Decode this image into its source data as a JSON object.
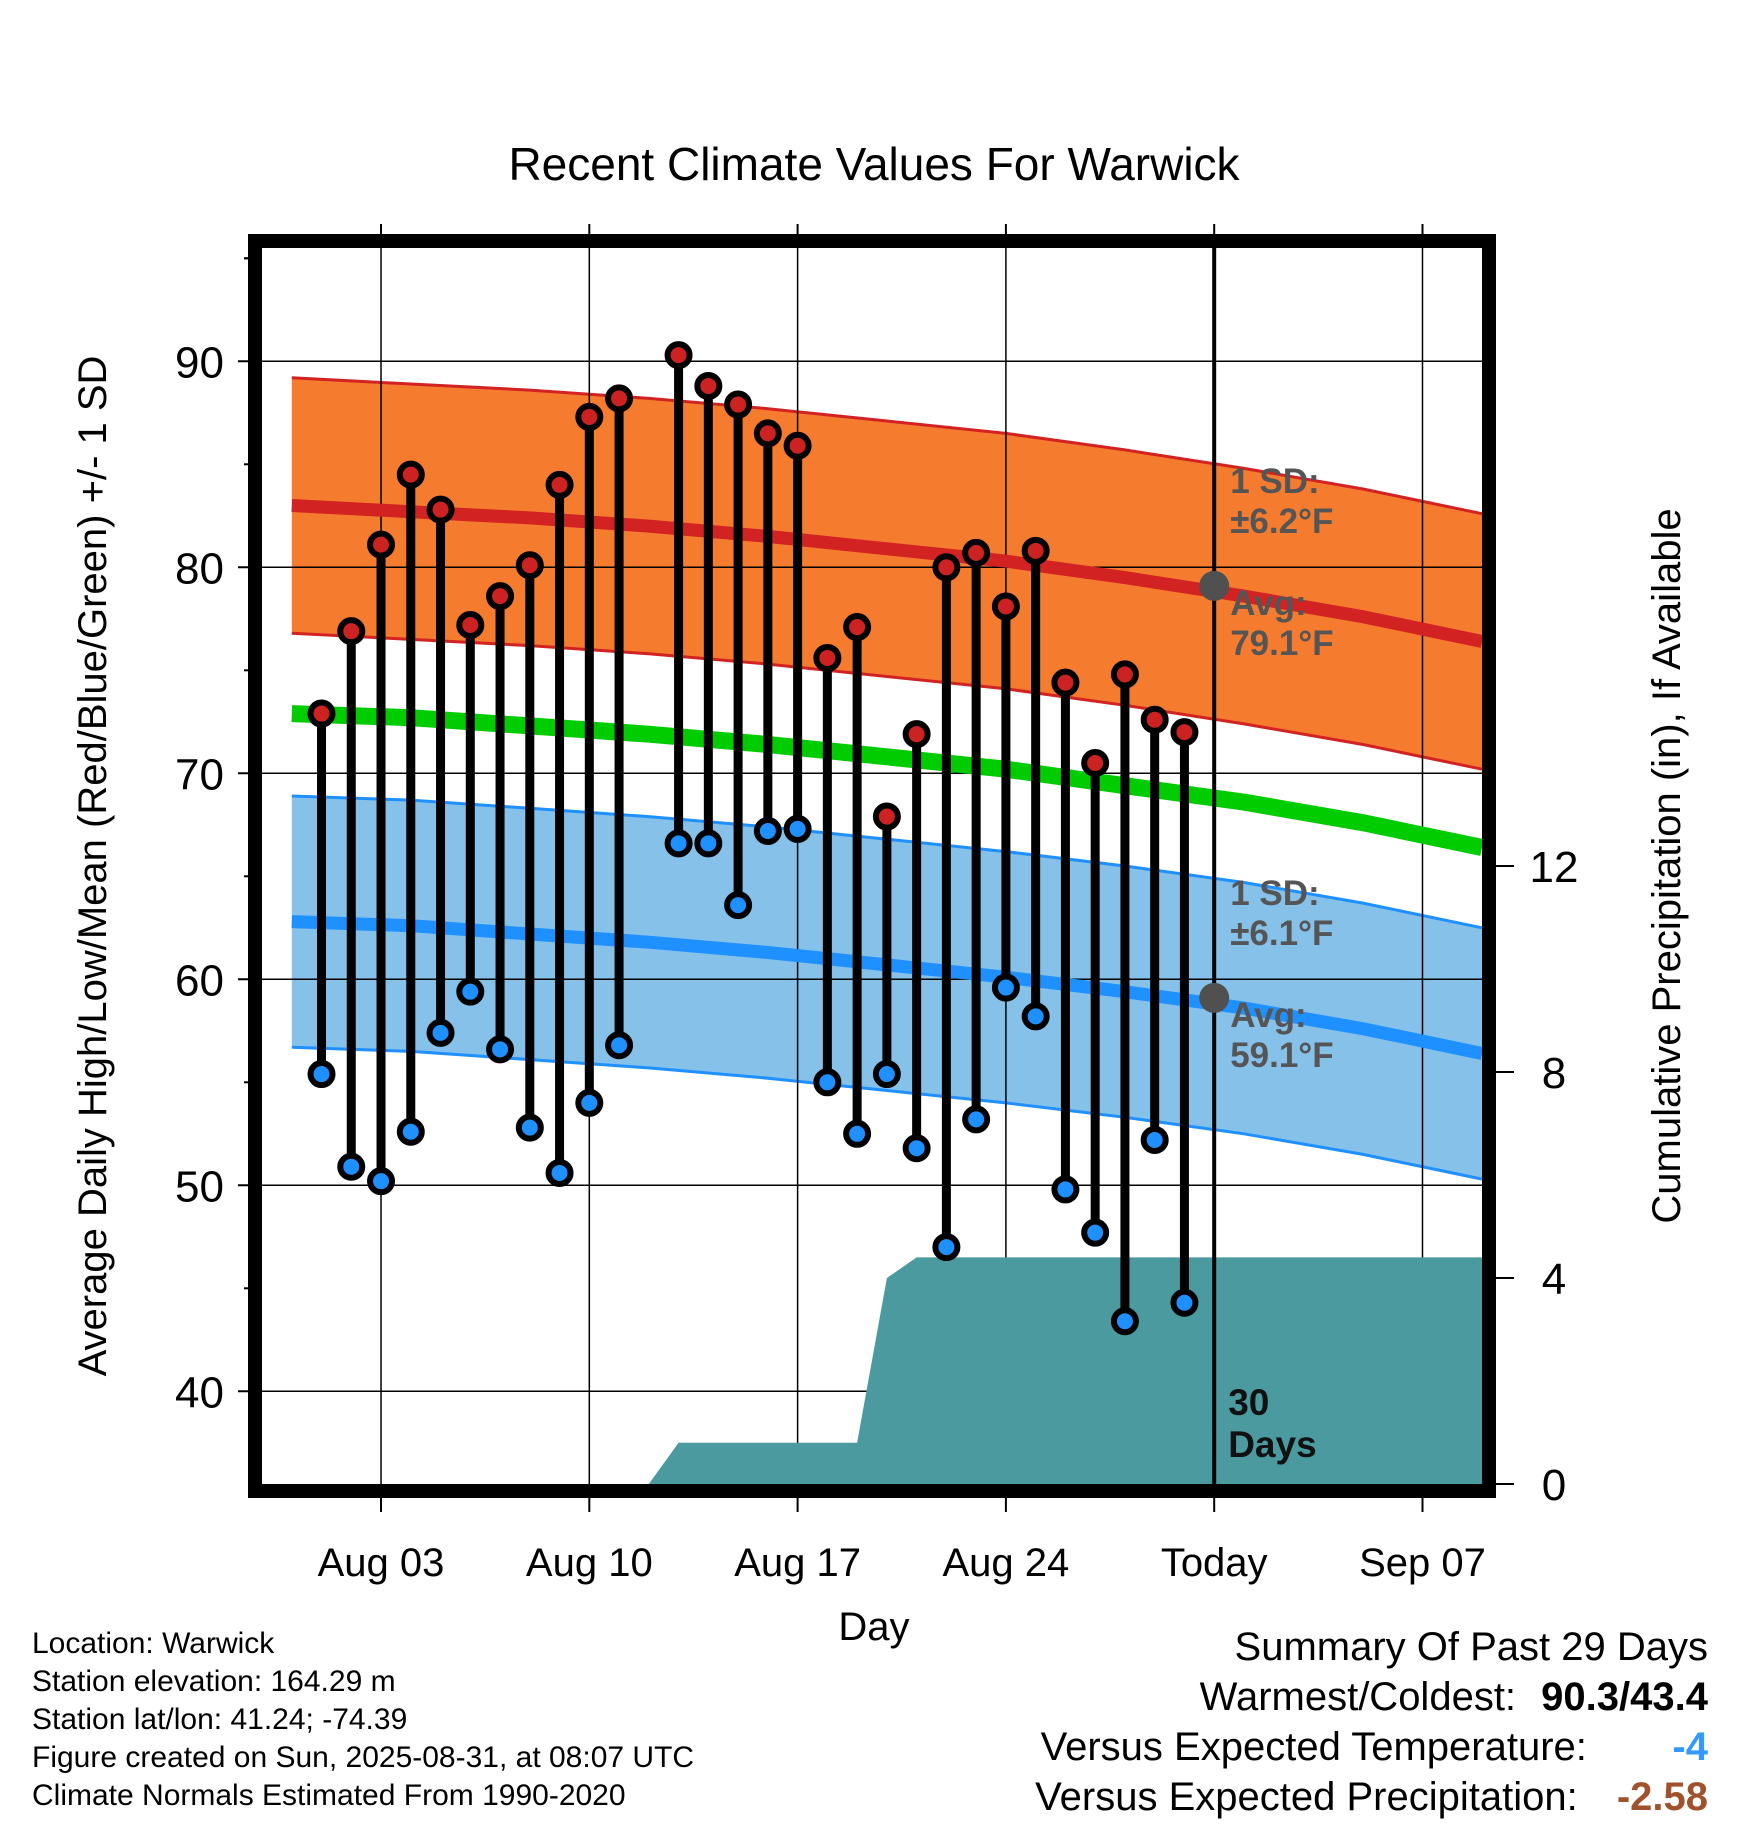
{
  "chart_data": {
    "type": "bar",
    "title": "Recent Climate Values For Warwick",
    "xlabel": "Day",
    "ylabel_left": "Average Daily High/Low/Mean (Red/Blue/Green) +/- 1 SD",
    "ylabel_right": "Cumulative Precipitation (in), If Available",
    "x_tick_labels": [
      "Aug 03",
      "Aug 10",
      "Aug 17",
      "Aug 24",
      "Today",
      "Sep 07"
    ],
    "y_left_ticks": [
      "40",
      "50",
      "60",
      "70",
      "80",
      "90"
    ],
    "y_right_ticks": [
      "0",
      "4",
      "8",
      "12"
    ],
    "y_left_range": [
      35.5,
      95.5
    ],
    "y_right_range": [
      0,
      24
    ],
    "x_range": [
      "Jul 30",
      "Sep 09"
    ],
    "grid": true,
    "today_label": [
      "30",
      "Days"
    ],
    "days": [
      "Aug 01",
      "Aug 02",
      "Aug 03",
      "Aug 04",
      "Aug 05",
      "Aug 06",
      "Aug 07",
      "Aug 08",
      "Aug 09",
      "Aug 10",
      "Aug 11",
      "Aug 12",
      "Aug 13",
      "Aug 14",
      "Aug 15",
      "Aug 16",
      "Aug 17",
      "Aug 18",
      "Aug 19",
      "Aug 20",
      "Aug 21",
      "Aug 22",
      "Aug 23",
      "Aug 24",
      "Aug 25",
      "Aug 26",
      "Aug 27",
      "Aug 28",
      "Aug 29",
      "Aug 30"
    ],
    "series": [
      {
        "name": "High",
        "color": "#cc2222",
        "values": [
          72.9,
          76.9,
          81.1,
          84.5,
          82.8,
          77.2,
          78.6,
          80.1,
          84.0,
          87.3,
          88.2,
          null,
          90.3,
          88.8,
          87.9,
          86.5,
          85.9,
          75.6,
          77.1,
          67.9,
          71.9,
          80.0,
          80.7,
          78.1,
          80.8,
          74.4,
          70.5,
          74.8,
          72.6,
          72.0
        ]
      },
      {
        "name": "Low",
        "color": "#1e90ff",
        "values": [
          55.4,
          50.9,
          50.2,
          52.6,
          57.4,
          59.4,
          56.6,
          52.8,
          50.6,
          54.0,
          56.8,
          null,
          66.6,
          66.6,
          63.6,
          67.2,
          67.3,
          55.0,
          52.5,
          55.4,
          51.8,
          47.0,
          53.2,
          59.6,
          58.2,
          49.8,
          47.7,
          43.4,
          52.2,
          44.3
        ]
      }
    ],
    "normals": {
      "days": [
        "Jul 31",
        "Aug 04",
        "Aug 08",
        "Aug 12",
        "Aug 16",
        "Aug 20",
        "Aug 24",
        "Aug 28",
        "Sep 01",
        "Sep 05",
        "Sep 09"
      ],
      "avg_high": [
        83.0,
        82.7,
        82.4,
        82.0,
        81.5,
        80.9,
        80.3,
        79.5,
        78.6,
        77.6,
        76.4
      ],
      "avg_low": [
        62.8,
        62.6,
        62.2,
        61.8,
        61.3,
        60.7,
        60.1,
        59.4,
        58.6,
        57.6,
        56.4
      ],
      "avg_mean": [
        72.9,
        72.7,
        72.3,
        71.9,
        71.4,
        70.8,
        70.2,
        69.4,
        68.6,
        67.6,
        66.4
      ],
      "high_sd": 6.2,
      "low_sd": 6.1,
      "high_band_color": "#f57c2e",
      "high_line_color": "#d22222",
      "low_band_color": "#85c1e9",
      "low_line_color": "#1e90ff",
      "mean_color": "#00cc00"
    },
    "today_markers": {
      "high": 79.1,
      "low": 59.1
    },
    "annotations": {
      "high": [
        "1 SD:",
        "±6.2°F",
        "Avg:",
        "79.1°F"
      ],
      "low": [
        "1 SD:",
        "±6.1°F",
        "Avg:",
        "59.1°F"
      ]
    },
    "precipitation": {
      "color": "#4a9aa0",
      "days": [
        "Aug 12",
        "Aug 13",
        "Aug 16",
        "Aug 19",
        "Aug 20",
        "Aug 21",
        "Today",
        "Sep 09"
      ],
      "values": [
        0.0,
        0.8,
        0.8,
        0.8,
        4.0,
        4.4,
        4.4,
        4.4
      ]
    }
  },
  "info": {
    "location": "Location: Warwick",
    "elevation": "Station elevation: 164.29 m",
    "latlon": "Station lat/lon: 41.24; -74.39",
    "created": "Figure created on Sun, 2025-08-31, at 08:07 UTC",
    "normals": "Climate Normals Estimated From 1990-2020"
  },
  "summary": {
    "title": "Summary Of Past 29 Days",
    "warm_cold_label": "Warmest/Coldest:",
    "warm_cold_value": "90.3/43.4",
    "temp_label": "Versus Expected Temperature:",
    "temp_value": "-4",
    "temp_color": "#3399ff",
    "precip_label": "Versus Expected Precipitation:",
    "precip_value": "-2.58",
    "precip_color": "#a0522d"
  }
}
